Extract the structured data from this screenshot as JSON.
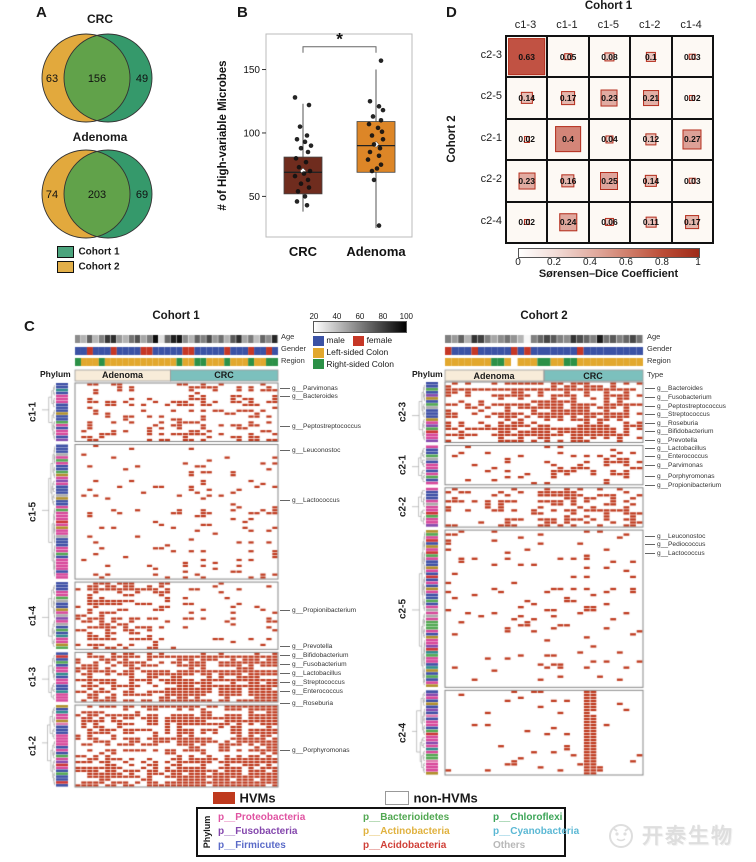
{
  "panels": {
    "a": "A",
    "b": "B",
    "c": "C",
    "d": "D"
  },
  "panel_a": {
    "legend": [
      {
        "label": "Cohort 1",
        "color": "#4ba47d"
      },
      {
        "label": "Cohort 2",
        "color": "#e2af49"
      }
    ],
    "colors": {
      "left": "#e2a93d",
      "right": "#35996b",
      "overlap": "#61a24a"
    }
  },
  "panel_c": {
    "age_scale_ticks": [
      20,
      40,
      60,
      80,
      100
    ],
    "male_label": "male",
    "female_label": "female",
    "left_colon_label": "Left-sided Colon",
    "right_colon_label": "Right-sided Colon",
    "male_color": "#3b52a5",
    "female_color": "#c63726",
    "left_color": "#e2a82e",
    "right_color": "#2c9147",
    "phylum_header": "Phylum",
    "phylum_palette": [
      [
        "#3d4fa5",
        0.34
      ],
      [
        "#d8479a",
        0.3
      ],
      [
        "#52a852",
        0.08
      ],
      [
        "#b08f2a",
        0.07
      ],
      [
        "#2e8c8c",
        0.05
      ],
      [
        "#cc3333",
        0.05
      ],
      [
        "#8447ad",
        0.05
      ],
      [
        "#e27ab0",
        0.03
      ],
      [
        "#aaaaaa",
        0.03
      ]
    ],
    "hvm_color": "#bf3a1e"
  },
  "bottom_legend": {
    "hvm_label": "HVMs",
    "hvm_color": "#bf3a1e",
    "non_hvm_label": "non-HVMs",
    "phylum_title": "Phylum",
    "items": [
      {
        "label": "p__Proteobacteria",
        "color": "#e054a2"
      },
      {
        "label": "p__Fusobacteria",
        "color": "#8447ad"
      },
      {
        "label": "p__Firmicutes",
        "color": "#5b6bc8"
      },
      {
        "label": "p__Bacterioidetes",
        "color": "#52a852"
      },
      {
        "label": "p__Actinobacteria",
        "color": "#e0b23f"
      },
      {
        "label": "p__Acidobacteria",
        "color": "#d04038"
      },
      {
        "label": "p__Chloroflexi",
        "color": "#3da558"
      },
      {
        "label": "p__Cyanobacteria",
        "color": "#5bb8d4"
      },
      {
        "label": "Others",
        "color": "#b8b8b8"
      }
    ]
  },
  "watermark": {
    "text": "开泰生物"
  },
  "chart_data": [
    {
      "id": "venn_crc",
      "type": "venn",
      "title": "CRC",
      "sets": [
        "Cohort 2",
        "Cohort 1"
      ],
      "left_only": 63,
      "intersection": 156,
      "right_only": 49
    },
    {
      "id": "venn_adenoma",
      "type": "venn",
      "title": "Adenoma",
      "sets": [
        "Cohort 2",
        "Cohort 1"
      ],
      "left_only": 74,
      "intersection": 203,
      "right_only": 69
    },
    {
      "id": "hvm_boxplot",
      "type": "box",
      "ylabel": "# of High-variable Microbes",
      "yticks": [
        50,
        100,
        150
      ],
      "ylim": [
        18,
        178
      ],
      "significance": "*",
      "categories": [
        "CRC",
        "Adenoma"
      ],
      "series": [
        {
          "name": "CRC",
          "color": "#6f2c1e",
          "whisker_low": 38,
          "q1": 52,
          "median": 69,
          "q3": 81,
          "whisker_high": 123,
          "mean": 70,
          "points": [
            128,
            122,
            105,
            98,
            95,
            93,
            90,
            88,
            85,
            80,
            77,
            73,
            70,
            68,
            66,
            63,
            60,
            57,
            54,
            50,
            46,
            43
          ],
          "jitter": [
            -8,
            6,
            -3,
            4,
            -6,
            2,
            8,
            -2,
            5,
            -7,
            3,
            -4,
            7,
            1,
            -8,
            5,
            -2,
            6,
            -5,
            2,
            -6,
            4
          ]
        },
        {
          "name": "Adenoma",
          "color": "#dd8627",
          "whisker_low": 25,
          "q1": 69,
          "median": 90,
          "q3": 109,
          "whisker_high": 150,
          "mean": 91,
          "points": [
            157,
            125,
            121,
            118,
            113,
            110,
            107,
            104,
            101,
            98,
            95,
            91,
            88,
            85,
            82,
            79,
            75,
            72,
            70,
            63,
            27
          ],
          "jitter": [
            5,
            -6,
            3,
            7,
            -3,
            5,
            -7,
            2,
            6,
            -4,
            7,
            -2,
            4,
            -6,
            3,
            -8,
            5,
            1,
            -4,
            -2,
            3
          ]
        }
      ]
    },
    {
      "id": "dice_matrix",
      "type": "heatmap",
      "title_top": "Cohort 1",
      "title_left": "Cohort 2",
      "columns": [
        "c1-3",
        "c1-1",
        "c1-5",
        "c1-2",
        "c1-4"
      ],
      "rows": [
        "c2-3",
        "c2-5",
        "c2-1",
        "c2-2",
        "c2-4"
      ],
      "values": [
        [
          0.63,
          0.05,
          0.08,
          0.1,
          0.03
        ],
        [
          0.14,
          0.17,
          0.23,
          0.21,
          0.02
        ],
        [
          0.02,
          0.4,
          0.04,
          0.12,
          0.27
        ],
        [
          0.23,
          0.16,
          0.25,
          0.14,
          0.03
        ],
        [
          0.02,
          0.24,
          0.06,
          0.11,
          0.17
        ]
      ],
      "colorbar": {
        "ticks": [
          0,
          0.2,
          0.4,
          0.6,
          0.8,
          1
        ],
        "label": "Sørensen–Dice Coefficient",
        "low": "#ffffff",
        "high": "#9e2a18"
      }
    },
    {
      "id": "hvm_cohort1",
      "type": "binary-heatmap",
      "title": "Cohort 1",
      "seed": 7,
      "groups": [
        {
          "label": "Adenoma",
          "n": 16,
          "color": "#f8ecd9"
        },
        {
          "label": "CRC",
          "n": 18,
          "color": "#7cc0bd"
        }
      ],
      "annotations": {
        "age_label": "Age",
        "gender_label": "Gender",
        "region_label": "Region",
        "age": [
          0.45,
          0.3,
          0.62,
          0.28,
          0.5,
          0.78,
          0.82,
          0.4,
          0.3,
          0.55,
          0.68,
          0.35,
          0.52,
          0.95,
          0.12,
          0.6,
          0.88,
          0.92,
          0.45,
          0.3,
          0.62,
          0.5,
          0.72,
          0.4,
          0.57,
          0.3,
          0.65,
          0.82,
          0.35,
          0.52,
          0.25,
          0.6,
          0.45,
          0.85
        ],
        "gender": [
          "M",
          "M",
          "F",
          "M",
          "M",
          "M",
          "F",
          "M",
          "M",
          "M",
          "M",
          "F",
          "F",
          "M",
          "M",
          "M",
          "M",
          "M",
          "F",
          "F",
          "M",
          "M",
          "M",
          "M",
          "M",
          "F",
          "M",
          "M",
          "M",
          "F",
          "M",
          "M",
          "F",
          "M"
        ],
        "region": [
          "R",
          "L",
          "L",
          "L",
          "R",
          "L",
          "L",
          "L",
          "L",
          "L",
          "L",
          "L",
          "L",
          "L",
          "L",
          "L",
          "L",
          "R",
          "L",
          "L",
          "R",
          "R",
          "L",
          "L",
          "L",
          "R",
          "L",
          "L",
          "L",
          "R",
          "L",
          "L",
          "R",
          "R"
        ]
      },
      "clusters": [
        {
          "label": "c1-1",
          "rows": 20,
          "density": {
            "Adenoma": 0.18,
            "CRC": 0.32
          }
        },
        {
          "label": "c1-5",
          "rows": 46,
          "density": {
            "Adenoma": 0.05,
            "CRC": 0.08
          }
        },
        {
          "label": "c1-4",
          "rows": 23,
          "density": {
            "Adenoma": 0.42,
            "CRC": 0.1
          }
        },
        {
          "label": "c1-3",
          "rows": 17,
          "density": {
            "Adenoma": 0.55,
            "CRC": 0.72
          }
        },
        {
          "label": "c1-2",
          "rows": 28,
          "density": {
            "Adenoma": 0.45,
            "CRC": 0.72
          }
        }
      ],
      "genus_annotations": [
        {
          "text": "g__Parvimonas",
          "pos": 0.005
        },
        {
          "text": "g__Bacteroides",
          "pos": 0.025
        },
        {
          "text": "g__Peptostreptococcus",
          "pos": 0.1
        },
        {
          "text": "g__Leuconostoc",
          "pos": 0.158
        },
        {
          "text": "g__Lactococcus",
          "pos": 0.282
        },
        {
          "text": "g__Propionibacterium",
          "pos": 0.554
        },
        {
          "text": "g__Prevotella",
          "pos": 0.643
        },
        {
          "text": "g__Bifidobacterium",
          "pos": 0.666
        },
        {
          "text": "g__Fusobacterium",
          "pos": 0.688
        },
        {
          "text": "g__Lactobacillus",
          "pos": 0.71
        },
        {
          "text": "g__Streptococcus",
          "pos": 0.733
        },
        {
          "text": "g__Enterococcus",
          "pos": 0.755
        },
        {
          "text": "g__Roseburia",
          "pos": 0.785
        },
        {
          "text": "g__Porphyromonas",
          "pos": 0.901
        }
      ]
    },
    {
      "id": "hvm_cohort2",
      "type": "binary-heatmap",
      "title": "Cohort 2",
      "seed": 13,
      "groups": [
        {
          "label": "Adenoma",
          "n": 15,
          "color": "#f8ecd9"
        },
        {
          "label": "CRC",
          "n": 15,
          "color": "#7cc0bd"
        }
      ],
      "annotations": {
        "age_label": "Age",
        "gender_label": "Gender",
        "region_label": "Region",
        "type_label": "Type",
        "age": [
          0.5,
          0.4,
          0.62,
          0.3,
          0.8,
          0.75,
          0.5,
          0.35,
          0.45,
          0.55,
          0.42,
          0.3,
          0.03,
          0.5,
          0.6,
          0.72,
          0.65,
          0.5,
          0.45,
          0.8,
          0.7,
          0.6,
          0.5,
          0.9,
          0.55,
          0.65,
          0.5,
          0.6,
          0.72,
          0.55
        ],
        "gender": [
          "F",
          "M",
          "M",
          "M",
          "F",
          "M",
          "M",
          "M",
          "M",
          "M",
          "F",
          "M",
          "F",
          "M",
          "M",
          "M",
          "M",
          "M",
          "M",
          "M",
          "F",
          "M",
          "M",
          "M",
          "M",
          "M",
          "M",
          "M",
          "M",
          "M"
        ],
        "region": [
          "L",
          "L",
          "L",
          "L",
          "L",
          "L",
          "L",
          "R",
          "R",
          "L",
          "W",
          "L",
          "L",
          "L",
          "R",
          "R",
          "L",
          "L",
          "R",
          "R",
          "L",
          "L",
          "L",
          "L",
          "L",
          "L",
          "L",
          "L",
          "L",
          "L"
        ]
      },
      "clusters": [
        {
          "label": "c2-3",
          "rows": 20,
          "density": {
            "Adenoma": 0.6,
            "CRC": 0.68
          }
        },
        {
          "label": "c2-1",
          "rows": 13,
          "density": {
            "Adenoma": 0.08,
            "CRC": 0.3
          }
        },
        {
          "label": "c2-2",
          "rows": 13,
          "density": {
            "Adenoma": 0.22,
            "CRC": 0.35
          }
        },
        {
          "label": "c2-5",
          "rows": 52,
          "density": {
            "Adenoma": 0.07,
            "CRC": 0.1
          }
        },
        {
          "label": "c2-4",
          "rows": 28,
          "density": {
            "Adenoma": 0.04,
            "CRC": 0.06
          },
          "solid_crc_cols": [
            6,
            7
          ]
        }
      ],
      "genus_annotations": [
        {
          "text": "g__Bacteroides",
          "pos": 0.008
        },
        {
          "text": "g__Fusobacterium",
          "pos": 0.031
        },
        {
          "text": "g__Peptostreptococcus",
          "pos": 0.053
        },
        {
          "text": "g__Streptococcus",
          "pos": 0.074
        },
        {
          "text": "g__Roseburia",
          "pos": 0.097
        },
        {
          "text": "g__Bifidobacterium",
          "pos": 0.117
        },
        {
          "text": "g__Prevotella",
          "pos": 0.14
        },
        {
          "text": "g__Lactobacillus",
          "pos": 0.16
        },
        {
          "text": "g__Enterococcus",
          "pos": 0.181
        },
        {
          "text": "g__Parvimonas",
          "pos": 0.204
        },
        {
          "text": "g__Porphyromonas",
          "pos": 0.232
        },
        {
          "text": "g__Propionibacterium",
          "pos": 0.254
        },
        {
          "text": "g__Leuconostoc",
          "pos": 0.384
        },
        {
          "text": "g__Pediococcus",
          "pos": 0.404
        },
        {
          "text": "g__Lactococcus",
          "pos": 0.427
        }
      ]
    }
  ]
}
